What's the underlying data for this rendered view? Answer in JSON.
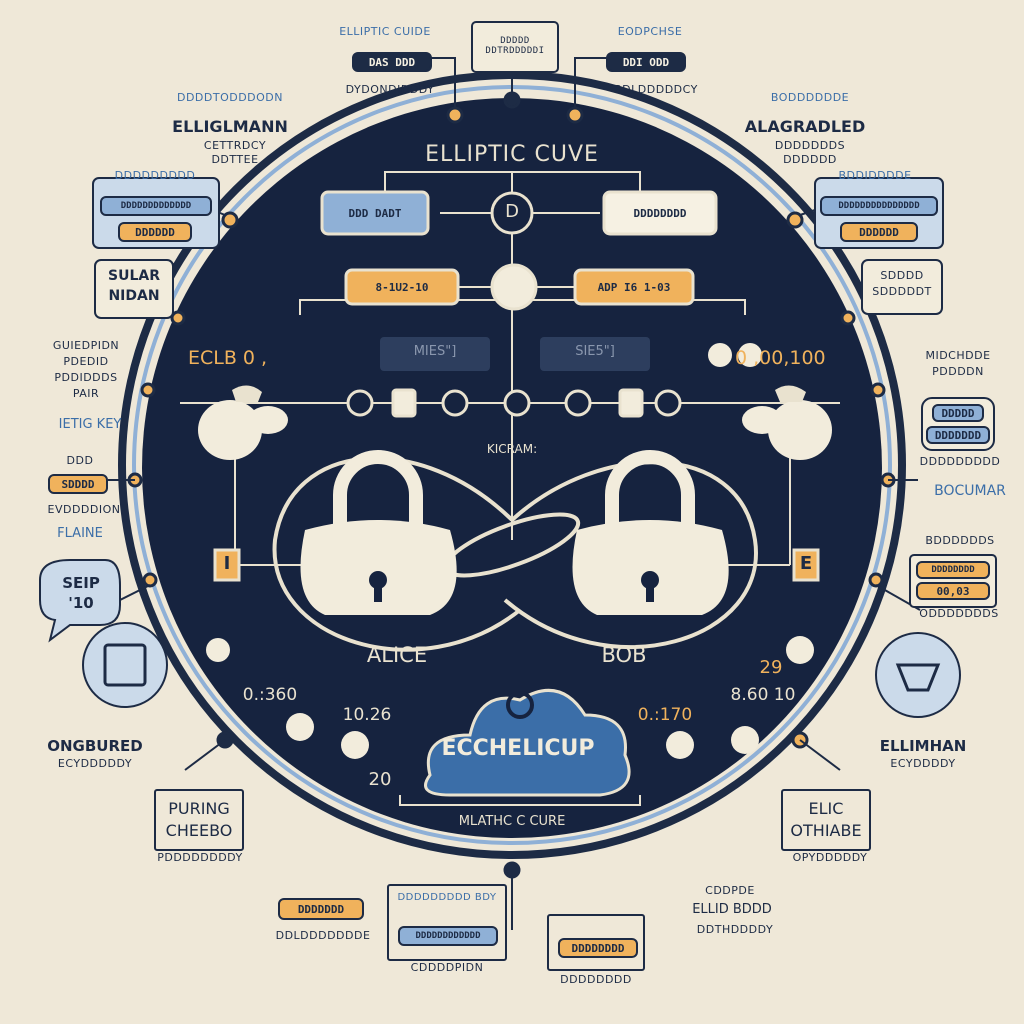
{
  "palette": {
    "background": "#efe8d8",
    "navy": "#16233f",
    "ink": "#1d2b45",
    "blue": "#8fb0d6",
    "orange": "#f0b25c",
    "cream": "#f2ecdc"
  },
  "center": {
    "title": "ELLIPTIC CUVE",
    "center_symbol": "D",
    "left_box": "DDD DADT",
    "right_box": "DDDDDDDD",
    "left_value": "8-1U2-10",
    "right_value": "ADP I6 1-03",
    "left_faded": "MIES\"]",
    "right_faded": "SIE5\"]",
    "left_readout": "ECLB 0 ,",
    "right_readout": "0 ,00,100",
    "chain_label": "KICRAM:",
    "alice_label": "ALICE",
    "bob_label": "BOB",
    "left_low_value": "0.:360",
    "right_low_value": "8.60 10",
    "left_number": "10.26",
    "right_number": "0.:170",
    "right_small_number": "29",
    "left_arrow_value": "20",
    "cloud_label": "ECCHELICUP",
    "bottom_label": "MLATHC C CURE",
    "left_tag": "I",
    "right_tag": "E"
  },
  "outer": {
    "top_left_title": "ELLIPTIC CUIDE",
    "top_left_box": "DAS DDD",
    "top_left_caption": "DYDONDIDDDY",
    "top_center_box": "DDDDD DDTRDDDDDI",
    "top_right_title": "EODPCHSE",
    "top_right_box": "DDI ODD",
    "top_right_caption": "BDLDDDDDCY",
    "upper_left_small": "DDDDTODDDODN",
    "upper_left_title": "ELLIGLMANN",
    "upper_left_sub1": "CETTRDCY",
    "upper_left_sub2": "DDTTEE",
    "upper_right_small": "BODDDDDDE",
    "upper_right_title": "ALAGRADLED",
    "upper_right_sub1": "DDDDDDDS",
    "upper_right_sub2": "DDDDDD",
    "left_box_caption": "DDDDDDDDD",
    "left_box_blue": "DDDDDDDDDDDDD",
    "left_box_orange": "DDDDDD",
    "right_box_caption": "BDDIDDDDE",
    "right_box_blue": "DDDDDDDDDDDDDDD",
    "right_box_orange": "DDDDDD",
    "left_card_line1": "SULAR",
    "left_card_line2": "NIDAN",
    "right_card_line1": "SDDDD",
    "right_card_line2": "SDDDDDT",
    "left_list": [
      "GUIEDPIDN",
      "PDEDID",
      "PDDIDDDS",
      "PAIR"
    ],
    "left_key": "IETIG KEY",
    "left_key_small": "DDD",
    "left_key_orange": "SDDDD",
    "left_key_sub": "EVDDDDION",
    "left_key_blue": "FLAINE",
    "left_bubble_line1": "SEIP",
    "left_bubble_line2": "'10",
    "right_list_title": "MIDCHDDE",
    "right_list_sub": "PDDDDN",
    "right_pill_top": "DDDDD",
    "right_pill_bottom": "DDDDDDD",
    "right_pill_caption": "DDDDDDDDD",
    "right_mid_title": "BOCUMAR",
    "right_mid_box_title": "BDDDDDDS",
    "right_mid_orange_1": "DDDDDDDD",
    "right_mid_orange_2": "00,03",
    "right_mid_caption": "ODDDDDDDS",
    "bottom_left_title": "ONGBURED",
    "bottom_left_sub": "ECYDDDDDY",
    "bottom_right_title": "ELLIMHAN",
    "bottom_right_sub": "ECYDDDDY",
    "lower_left_line1": "PURING",
    "lower_left_line2": "CHEEBO",
    "lower_left_sub": "PDDDDDDDDY",
    "lower_right_line1": "ELIC",
    "lower_right_line2": "OTHIABE",
    "lower_right_sub": "OPYDDDDDY",
    "bottom_left_box": "DDDDDDD",
    "bottom_left_caption": "DDLDDDDDDDE",
    "bottom_center_title": "DDDDDDDDD BDY",
    "bottom_center_box": "DDDDDDDDDDDD",
    "bottom_center_caption": "CDDDDPIDN",
    "bottom_right_box": "DDDDDDDD",
    "bottom_right_caption": "DDDDDDDD",
    "bottom_far_right_1": "CDDPDE",
    "bottom_far_right_2": "ELLID BDDD",
    "bottom_far_right_3": "DDTHDDDDY"
  }
}
